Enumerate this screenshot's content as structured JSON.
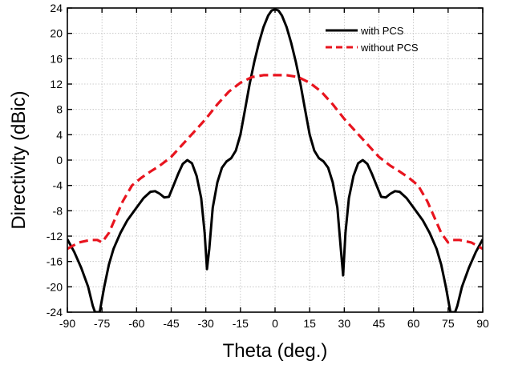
{
  "chart_data": {
    "type": "line",
    "title": "",
    "xlabel": "Theta (deg.)",
    "ylabel": "Directivity (dBic)",
    "xlim": [
      -90,
      90
    ],
    "ylim": [
      -24,
      24
    ],
    "xticks": [
      -90,
      -75,
      -60,
      -45,
      -30,
      -15,
      0,
      15,
      30,
      45,
      60,
      75,
      90
    ],
    "yticks": [
      -24,
      -20,
      -16,
      -12,
      -8,
      -4,
      0,
      4,
      8,
      12,
      16,
      20,
      24
    ],
    "grid": true,
    "legend_position": "top-right",
    "series": [
      {
        "name": "with PCS",
        "color": "#000000",
        "style": "solid",
        "points": [
          [
            -90,
            -12.5
          ],
          [
            -87,
            -14.5
          ],
          [
            -84,
            -17
          ],
          [
            -81,
            -20
          ],
          [
            -79,
            -23
          ],
          [
            -78,
            -24
          ],
          [
            -76,
            -24
          ],
          [
            -74,
            -20
          ],
          [
            -72,
            -16.5
          ],
          [
            -70,
            -14
          ],
          [
            -67,
            -11.5
          ],
          [
            -64,
            -9.5
          ],
          [
            -60,
            -7.5
          ],
          [
            -57,
            -6.0
          ],
          [
            -54,
            -5.0
          ],
          [
            -52,
            -4.9
          ],
          [
            -50,
            -5.3
          ],
          [
            -48,
            -5.9
          ],
          [
            -46,
            -5.8
          ],
          [
            -44,
            -4.0
          ],
          [
            -42,
            -2.2
          ],
          [
            -40,
            -0.6
          ],
          [
            -38,
            0.0
          ],
          [
            -36,
            -0.5
          ],
          [
            -34,
            -2.5
          ],
          [
            -32,
            -6.0
          ],
          [
            -30.5,
            -11.5
          ],
          [
            -29.5,
            -17.2
          ],
          [
            -28.5,
            -14
          ],
          [
            -27,
            -7.5
          ],
          [
            -25,
            -3.5
          ],
          [
            -23,
            -1.2
          ],
          [
            -21,
            -0.2
          ],
          [
            -19,
            0.3
          ],
          [
            -17,
            1.5
          ],
          [
            -15,
            4.0
          ],
          [
            -13,
            8.0
          ],
          [
            -11,
            12.0
          ],
          [
            -9,
            15.5
          ],
          [
            -7,
            18.5
          ],
          [
            -5,
            21.0
          ],
          [
            -3,
            22.8
          ],
          [
            -1.5,
            23.6
          ],
          [
            0,
            23.8
          ],
          [
            1.5,
            23.6
          ],
          [
            3,
            22.8
          ],
          [
            5,
            21.0
          ],
          [
            7,
            18.5
          ],
          [
            9,
            15.5
          ],
          [
            11,
            12.0
          ],
          [
            13,
            8.0
          ],
          [
            15,
            4.0
          ],
          [
            17,
            1.5
          ],
          [
            19,
            0.3
          ],
          [
            21,
            -0.2
          ],
          [
            23,
            -1.2
          ],
          [
            25,
            -3.5
          ],
          [
            27,
            -7.5
          ],
          [
            28.5,
            -14
          ],
          [
            29.5,
            -18.2
          ],
          [
            30.5,
            -11.5
          ],
          [
            32,
            -6.0
          ],
          [
            34,
            -2.5
          ],
          [
            36,
            -0.5
          ],
          [
            38,
            0.0
          ],
          [
            40,
            -0.6
          ],
          [
            42,
            -2.2
          ],
          [
            44,
            -4.0
          ],
          [
            46,
            -5.8
          ],
          [
            48,
            -5.9
          ],
          [
            50,
            -5.3
          ],
          [
            52,
            -4.9
          ],
          [
            54,
            -5.0
          ],
          [
            57,
            -6.0
          ],
          [
            60,
            -7.5
          ],
          [
            64,
            -9.5
          ],
          [
            67,
            -11.5
          ],
          [
            70,
            -14
          ],
          [
            72,
            -16.5
          ],
          [
            74,
            -20
          ],
          [
            76,
            -24
          ],
          [
            78,
            -24
          ],
          [
            79,
            -23
          ],
          [
            81,
            -20
          ],
          [
            84,
            -17
          ],
          [
            87,
            -14.5
          ],
          [
            90,
            -12.5
          ]
        ]
      },
      {
        "name": "without PCS",
        "color": "#e8141e",
        "style": "dashed",
        "points": [
          [
            -90,
            -14.0
          ],
          [
            -85,
            -13.0
          ],
          [
            -80,
            -12.6
          ],
          [
            -77,
            -12.6
          ],
          [
            -75,
            -13.0
          ],
          [
            -72,
            -11.5
          ],
          [
            -69,
            -9.0
          ],
          [
            -66,
            -6.5
          ],
          [
            -62,
            -4.0
          ],
          [
            -58,
            -2.8
          ],
          [
            -54,
            -1.8
          ],
          [
            -50,
            -0.9
          ],
          [
            -45,
            0.5
          ],
          [
            -40,
            2.5
          ],
          [
            -35,
            4.5
          ],
          [
            -30,
            6.5
          ],
          [
            -25,
            8.8
          ],
          [
            -20,
            10.8
          ],
          [
            -15,
            12.2
          ],
          [
            -10,
            13.1
          ],
          [
            -5,
            13.4
          ],
          [
            0,
            13.4
          ],
          [
            5,
            13.4
          ],
          [
            10,
            13.1
          ],
          [
            15,
            12.2
          ],
          [
            20,
            10.8
          ],
          [
            25,
            8.8
          ],
          [
            30,
            6.5
          ],
          [
            35,
            4.5
          ],
          [
            40,
            2.5
          ],
          [
            45,
            0.5
          ],
          [
            50,
            -0.9
          ],
          [
            54,
            -1.8
          ],
          [
            58,
            -2.8
          ],
          [
            62,
            -4.0
          ],
          [
            66,
            -6.5
          ],
          [
            69,
            -9.0
          ],
          [
            72,
            -11.5
          ],
          [
            75,
            -13.0
          ],
          [
            77,
            -12.6
          ],
          [
            80,
            -12.6
          ],
          [
            85,
            -13.0
          ],
          [
            90,
            -14.0
          ]
        ]
      }
    ]
  }
}
